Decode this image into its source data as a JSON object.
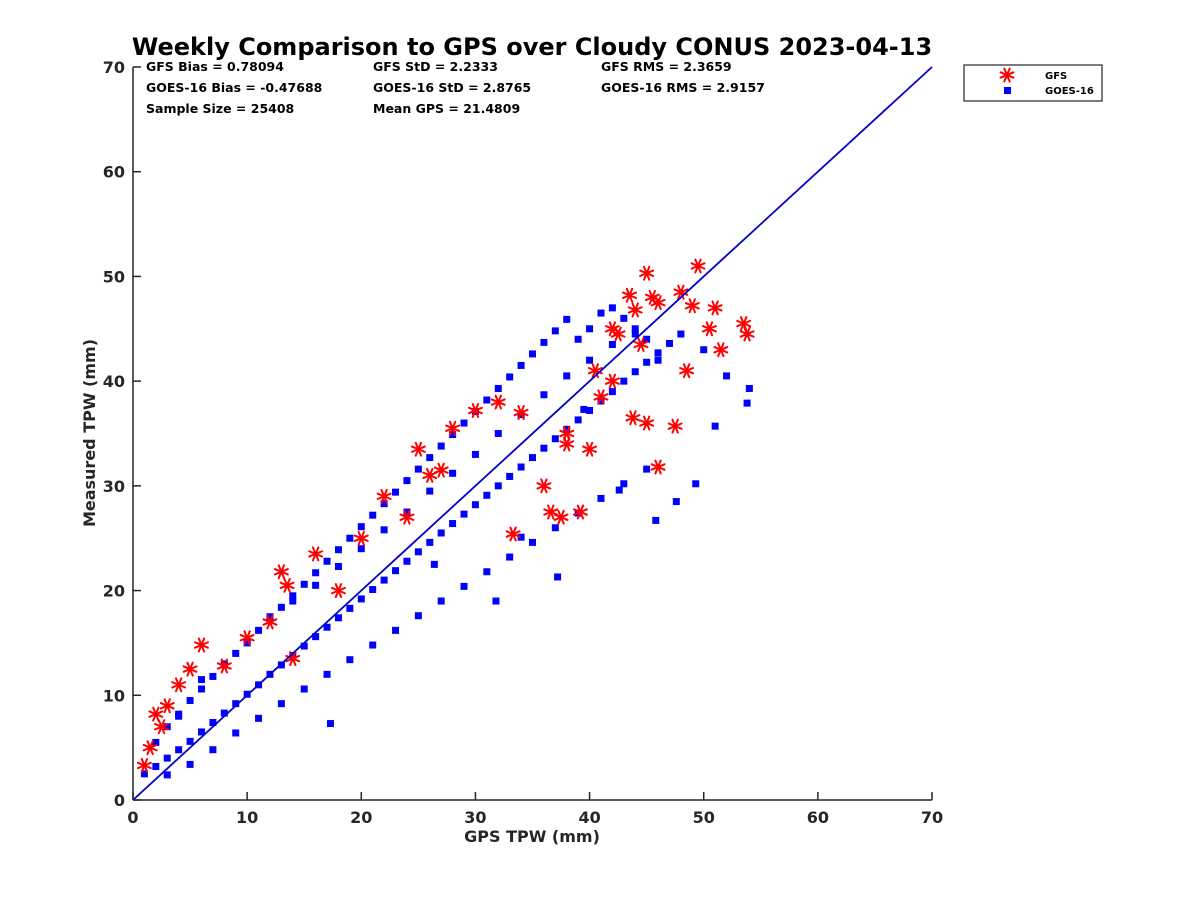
{
  "chart_data": {
    "type": "scatter",
    "title": "Weekly Comparison to GPS over Cloudy CONUS 2023-04-13",
    "xlabel": "GPS TPW (mm)",
    "ylabel": "Measured TPW (mm)",
    "xlim": [
      0,
      70
    ],
    "ylim": [
      0,
      70
    ],
    "xticks": [
      "0",
      "10",
      "20",
      "30",
      "40",
      "50",
      "60",
      "70"
    ],
    "yticks": [
      "0",
      "10",
      "20",
      "30",
      "40",
      "50",
      "60",
      "70"
    ],
    "grid": false,
    "legend_position": "outside-top-right",
    "stats": [
      "GFS Bias = 0.78094",
      "GFS StD = 2.2333",
      "GFS RMS = 2.3659",
      "GOES-16 Bias = -0.47688",
      "GOES-16 StD = 2.8765",
      "GOES-16 RMS = 2.9157",
      "Sample Size = 25408",
      "Mean GPS = 21.4809"
    ],
    "one_to_one_line": {
      "x": [
        0,
        70
      ],
      "y": [
        0,
        70
      ],
      "color": "#0000cc"
    },
    "series": [
      {
        "name": "GOES-16",
        "marker": "square",
        "color": "#0000ff",
        "x": [
          1,
          2,
          3,
          4,
          5,
          6,
          7,
          8,
          9,
          10,
          11,
          12,
          13,
          14,
          15,
          16,
          17,
          18,
          19,
          20,
          21,
          22,
          23,
          24,
          25,
          26,
          27,
          28,
          29,
          30,
          31,
          32,
          33,
          34,
          35,
          36,
          37,
          38,
          39,
          40,
          41,
          42,
          43,
          44,
          45,
          46,
          47,
          48,
          50,
          52,
          54,
          2,
          3,
          4,
          5,
          6,
          7,
          8,
          9,
          10,
          11,
          12,
          13,
          14,
          15,
          16,
          17,
          18,
          19,
          20,
          21,
          22,
          23,
          24,
          25,
          26,
          27,
          28,
          29,
          30,
          31,
          32,
          33,
          34,
          35,
          36,
          37,
          38,
          39,
          40,
          41,
          42,
          43,
          44,
          45,
          46,
          3,
          5,
          7,
          9,
          11,
          13,
          15,
          17,
          19,
          21,
          23,
          25,
          27,
          29,
          31,
          33,
          35,
          37,
          39,
          41,
          43,
          45,
          4,
          6,
          8,
          10,
          12,
          14,
          16,
          18,
          20,
          22,
          24,
          26,
          28,
          30,
          32,
          34,
          36,
          38,
          40,
          42,
          44,
          37.2,
          42.6,
          45.8,
          47.6,
          49.3,
          51.0,
          53.8,
          39.5,
          31.8,
          17.3,
          34.0,
          26.4
        ],
        "y": [
          2.5,
          3.2,
          4.0,
          4.8,
          5.6,
          6.5,
          7.4,
          8.3,
          9.2,
          10.1,
          11.0,
          12.0,
          12.9,
          13.8,
          14.7,
          15.6,
          16.5,
          17.4,
          18.3,
          19.2,
          20.1,
          21.0,
          21.9,
          22.8,
          23.7,
          24.6,
          25.5,
          26.4,
          27.3,
          28.2,
          29.1,
          30.0,
          30.9,
          31.8,
          32.7,
          33.6,
          34.5,
          35.4,
          36.3,
          37.2,
          38.1,
          39.0,
          40.0,
          40.9,
          41.8,
          42.7,
          43.6,
          44.5,
          43.0,
          40.5,
          39.3,
          5.5,
          7.0,
          8.2,
          9.5,
          10.6,
          11.8,
          12.9,
          14.0,
          15.1,
          16.2,
          17.3,
          18.4,
          19.5,
          20.6,
          21.7,
          22.8,
          23.9,
          25.0,
          26.1,
          27.2,
          28.3,
          29.4,
          30.5,
          31.6,
          32.7,
          33.8,
          34.9,
          36.0,
          37.1,
          38.2,
          39.3,
          40.4,
          41.5,
          42.6,
          43.7,
          44.8,
          45.9,
          44.0,
          45.0,
          46.5,
          47.0,
          46.0,
          45.0,
          44.0,
          42.0,
          2.4,
          3.4,
          4.8,
          6.4,
          7.8,
          9.2,
          10.6,
          12.0,
          13.4,
          14.8,
          16.2,
          17.6,
          19.0,
          20.4,
          21.8,
          23.2,
          24.6,
          26.0,
          27.4,
          28.8,
          30.2,
          31.6,
          8.0,
          11.5,
          13.0,
          15.0,
          17.5,
          19.0,
          20.5,
          22.3,
          24.0,
          25.8,
          27.5,
          29.5,
          31.2,
          33.0,
          35.0,
          36.8,
          38.7,
          40.5,
          42.0,
          43.5,
          44.5,
          21.3,
          29.6,
          26.7,
          28.5,
          30.2,
          35.7,
          37.9,
          37.3,
          19.0,
          7.3,
          25.1,
          22.5
        ]
      },
      {
        "name": "GFS",
        "marker": "asterisk",
        "color": "#ff0000",
        "x": [
          1.0,
          1.5,
          2.0,
          2.5,
          3.0,
          4.0,
          5.0,
          6.0,
          8.0,
          10.0,
          12.0,
          13.0,
          14.0,
          16.0,
          18.0,
          20.0,
          22.0,
          24.0,
          25.0,
          26.0,
          28.0,
          30.0,
          32.0,
          33.3,
          34.0,
          36.0,
          36.6,
          37.5,
          38.0,
          39.2,
          40.0,
          41.0,
          42.0,
          43.5,
          44.0,
          45.0,
          45.5,
          46.0,
          47.5,
          48.0,
          48.5,
          49.0,
          49.5,
          50.5,
          51.0,
          51.5,
          53.5,
          53.8,
          45.0,
          46.0,
          43.8,
          38.0,
          40.5,
          42.0,
          44.5,
          42.5,
          27.0,
          13.5
        ],
        "y": [
          3.3,
          5.0,
          8.2,
          7.0,
          9.0,
          11.0,
          12.5,
          14.8,
          12.8,
          15.5,
          17.0,
          21.8,
          13.5,
          23.5,
          20.0,
          25.0,
          29.0,
          27.0,
          33.5,
          31.0,
          35.5,
          37.2,
          38.0,
          25.4,
          37.0,
          30.0,
          27.5,
          27.0,
          35.0,
          27.5,
          33.5,
          38.5,
          45.0,
          48.2,
          46.8,
          50.3,
          48.0,
          47.5,
          35.7,
          48.5,
          41.0,
          47.2,
          51.0,
          45.0,
          47.0,
          43.0,
          45.5,
          44.5,
          36.0,
          31.8,
          36.5,
          34.0,
          41.0,
          40.0,
          43.5,
          44.5,
          31.5,
          20.5
        ]
      }
    ]
  }
}
